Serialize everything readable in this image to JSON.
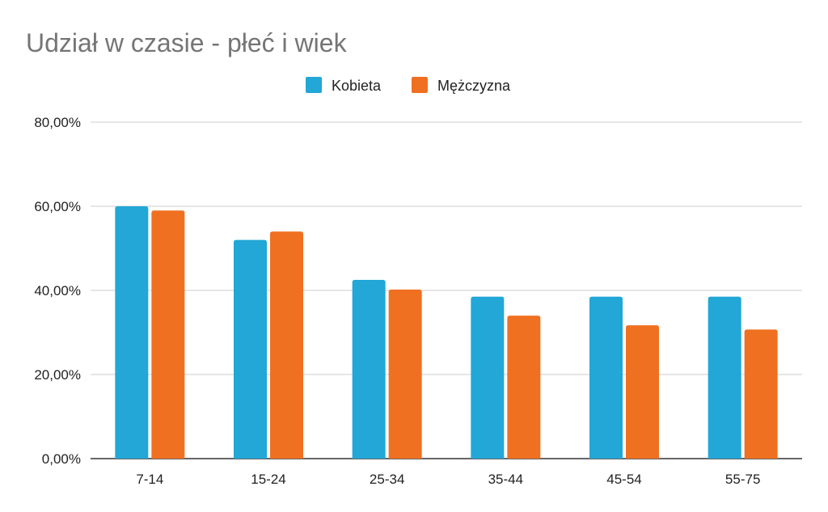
{
  "chart_data": {
    "type": "bar",
    "title": "Udział w czasie - płeć i wiek",
    "xlabel": "",
    "ylabel": "",
    "categories": [
      "7-14",
      "15-24",
      "25-34",
      "35-44",
      "45-54",
      "55-75"
    ],
    "series": [
      {
        "name": "Kobieta",
        "color": "#22A7D7",
        "values": [
          60.0,
          52.0,
          42.5,
          38.5,
          38.5,
          38.5
        ]
      },
      {
        "name": "Mężczyzna",
        "color": "#F07021",
        "values": [
          59.0,
          54.0,
          40.2,
          34.0,
          31.7,
          30.7
        ]
      }
    ],
    "ylim": [
      0,
      80
    ],
    "yticks": [
      "0,00%",
      "20,00%",
      "40,00%",
      "60,00%",
      "80,00%"
    ],
    "grid": true,
    "legend_position": "top"
  }
}
